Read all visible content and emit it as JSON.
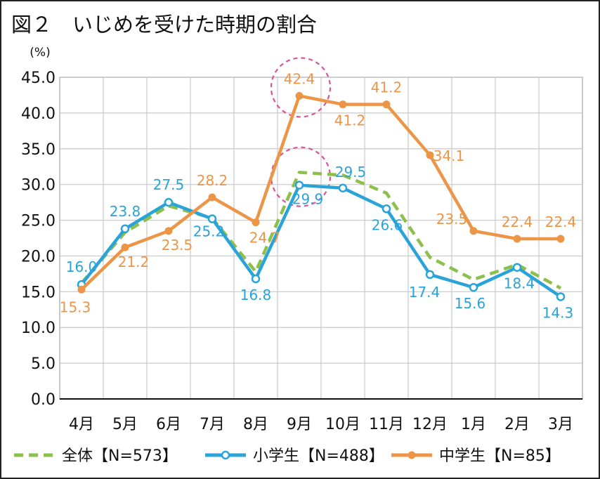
{
  "figure": {
    "title": "図２　いじめを受けた時期の割合"
  },
  "chart_data": {
    "type": "line",
    "title": "図２　いじめを受けた時期の割合",
    "ylabel": "(%)",
    "xlabel": "",
    "ylim": [
      0,
      45
    ],
    "y_ticks": [
      "0.0",
      "5.0",
      "10.0",
      "15.0",
      "20.0",
      "25.0",
      "30.0",
      "35.0",
      "40.0",
      "45.0"
    ],
    "categories": [
      "4月",
      "5月",
      "6月",
      "7月",
      "8月",
      "9月",
      "10月",
      "11月",
      "12月",
      "1月",
      "2月",
      "3月"
    ],
    "grid": true,
    "legend_position": "bottom",
    "series": [
      {
        "name": "全体【N=573】",
        "color": "#8cbf4b",
        "style": "dashed",
        "values": [
          16.2,
          23.3,
          27.0,
          25.3,
          17.8,
          31.7,
          31.3,
          28.8,
          19.8,
          16.7,
          18.8,
          15.5
        ],
        "labels": false
      },
      {
        "name": "小学生【N=488】",
        "color": "#2aa3d9",
        "style": "solid-hollow-marker",
        "values": [
          16.0,
          23.8,
          27.5,
          25.2,
          16.8,
          29.9,
          29.5,
          26.6,
          17.4,
          15.6,
          18.4,
          14.3
        ],
        "labels": true
      },
      {
        "name": "中学生【N=85】",
        "color": "#ec9547",
        "style": "solid-filled-marker",
        "values": [
          15.3,
          21.2,
          23.5,
          28.2,
          24.7,
          42.4,
          41.2,
          41.2,
          34.1,
          23.5,
          22.4,
          22.4
        ],
        "labels": true
      }
    ],
    "highlights": [
      {
        "series": 2,
        "index": 5,
        "color": "#d9559a"
      },
      {
        "series": 1,
        "index": 5,
        "color": "#d9559a"
      }
    ]
  }
}
